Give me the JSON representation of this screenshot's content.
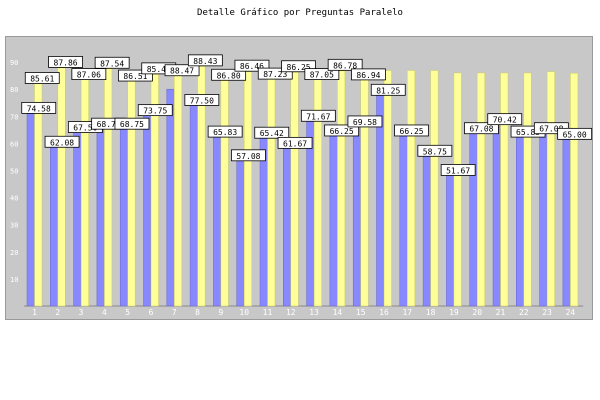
{
  "chart_data": {
    "type": "bar",
    "title": "Detalle Gráfico por Preguntas Paralelo",
    "xlabel": "",
    "ylabel": "",
    "ylim": [
      0,
      100
    ],
    "yticks": [
      "10",
      "20",
      "30",
      "40",
      "50",
      "60",
      "70",
      "80",
      "90"
    ],
    "grid": false,
    "legend": "none",
    "categories": [
      "1",
      "2",
      "3",
      "4",
      "5",
      "6",
      "7",
      "8",
      "9",
      "10",
      "11",
      "12",
      "13",
      "14",
      "15",
      "16",
      "17",
      "18",
      "19",
      "20",
      "21",
      "22",
      "23",
      "24"
    ],
    "series": [
      {
        "color": "#8888ff",
        "values": [
          74.58,
          62.08,
          67.5,
          68.75,
          68.75,
          73.75,
          80.0,
          77.5,
          65.83,
          57.08,
          65.42,
          61.67,
          71.67,
          66.25,
          69.58,
          81.25,
          66.25,
          58.75,
          51.67,
          67.08,
          70.42,
          65.83,
          67.08,
          65.0
        ],
        "labels": [
          "74.58",
          "62.08",
          "67.50",
          "68.75",
          "68.75",
          "73.75",
          "",
          "77.50",
          "65.83",
          "57.08",
          "65.42",
          "61.67",
          "71.67",
          "66.25",
          "69.58",
          "81.25",
          "66.25",
          "58.75",
          "51.67",
          "67.08",
          "70.42",
          "65.83",
          "67.08",
          "65.00"
        ]
      },
      {
        "color": "#ffff99",
        "values": [
          85.61,
          87.86,
          87.06,
          87.54,
          86.51,
          85.47,
          88.47,
          88.43,
          86.8,
          86.46,
          87.23,
          86.25,
          87.05,
          86.78,
          86.94,
          86.9,
          86.9,
          86.9,
          86.0,
          86.0,
          86.0,
          86.0,
          86.5,
          85.9
        ],
        "labels": [
          "85.61",
          "87.86",
          "87.06",
          "87.54",
          "86.51",
          "85.47",
          "88.47",
          "88.43",
          "86.80",
          "86.46",
          "87.23",
          "86.25",
          "87.05",
          "86.78",
          "86.94",
          "",
          "",
          "",
          "",
          "",
          "",
          "",
          "",
          ""
        ]
      }
    ]
  }
}
